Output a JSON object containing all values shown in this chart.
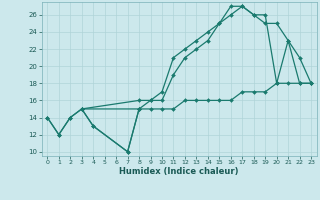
{
  "xlabel": "Humidex (Indice chaleur)",
  "bg_color": "#cce8ec",
  "line_color": "#1a7a6e",
  "grid_color": "#b0d4d8",
  "xlim": [
    -0.5,
    23.5
  ],
  "ylim": [
    9.5,
    27.5
  ],
  "xticks": [
    0,
    1,
    2,
    3,
    4,
    5,
    6,
    7,
    8,
    9,
    10,
    11,
    12,
    13,
    14,
    15,
    16,
    17,
    18,
    19,
    20,
    21,
    22,
    23
  ],
  "yticks": [
    10,
    12,
    14,
    16,
    18,
    20,
    22,
    24,
    26
  ],
  "series": [
    {
      "comment": "zigzag line going down then up: 0,14 -> 1,12 -> 2,14 -> 3,15 -> 4,13 -> 7,10 -> 8,15",
      "x": [
        0,
        1,
        2,
        3,
        4,
        7,
        8
      ],
      "y": [
        14,
        12,
        14,
        15,
        13,
        10,
        15
      ]
    },
    {
      "x": [
        0,
        1,
        2,
        3,
        4,
        7,
        8,
        9,
        10,
        11,
        12,
        13,
        14,
        15,
        16,
        17,
        18,
        19,
        20,
        21,
        22,
        23
      ],
      "y": [
        14,
        12,
        14,
        15,
        13,
        10,
        15,
        15,
        15,
        15,
        16,
        16,
        16,
        16,
        16,
        17,
        17,
        17,
        18,
        18,
        18,
        18
      ]
    },
    {
      "x": [
        3,
        8,
        9,
        10,
        11,
        12,
        13,
        14,
        15,
        16,
        17,
        18,
        19,
        20,
        21,
        22,
        23
      ],
      "y": [
        15,
        16,
        16,
        16,
        19,
        21,
        22,
        23,
        25,
        26,
        27,
        26,
        25,
        25,
        23,
        21,
        18
      ]
    },
    {
      "x": [
        3,
        8,
        9,
        10,
        11,
        12,
        13,
        14,
        15,
        16,
        17,
        18,
        19,
        20,
        21,
        22,
        23
      ],
      "y": [
        15,
        15,
        16,
        17,
        21,
        22,
        23,
        24,
        25,
        27,
        27,
        26,
        26,
        18,
        23,
        18,
        18
      ]
    }
  ]
}
